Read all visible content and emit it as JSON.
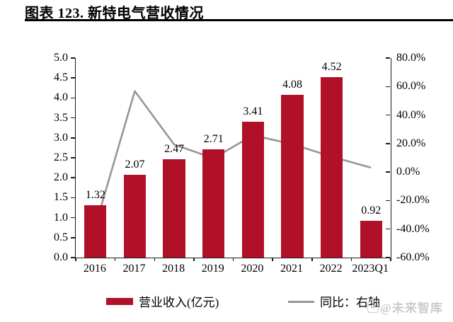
{
  "header": {
    "title": "图表 123. 新特电气营收情况"
  },
  "chart_data": {
    "type": "bar",
    "subtype": "bar-with-line-dual-axis",
    "categories": [
      "2016",
      "2017",
      "2018",
      "2019",
      "2020",
      "2021",
      "2022",
      "2023Q1"
    ],
    "series": [
      {
        "name": "营业收入(亿元)",
        "type": "bar",
        "axis": "left",
        "values": [
          1.32,
          2.07,
          2.47,
          2.71,
          3.41,
          4.08,
          4.52,
          0.92
        ],
        "labels": [
          "1.32",
          "2.07",
          "2.47",
          "2.71",
          "3.41",
          "4.08",
          "4.52",
          "0.92"
        ],
        "color": "#B01129"
      },
      {
        "name": "同比：右轴",
        "type": "line",
        "axis": "right",
        "values": [
          -37.7,
          56.8,
          19.3,
          9.7,
          25.8,
          19.6,
          10.8,
          3.1
        ],
        "color": "#969696"
      }
    ],
    "left_axis": {
      "min": 0.0,
      "max": 5.0,
      "tick_labels": [
        "5.0",
        "4.5",
        "4.0",
        "3.5",
        "3.0",
        "2.5",
        "2.0",
        "1.5",
        "1.0",
        "0.5",
        "0.0"
      ]
    },
    "right_axis": {
      "min": -60.0,
      "max": 80.0,
      "tick_labels": [
        "80.0%",
        "60.0%",
        "40.0%",
        "20.0%",
        "0.0%",
        "-20.0%",
        "-40.0%",
        "-60.0%"
      ]
    },
    "grid": false,
    "legend_position": "bottom",
    "title": "图表 123. 新特电气营收情况",
    "xlabel": "",
    "ylabel": ""
  },
  "legend": {
    "bar_label": "营业收入(亿元)",
    "line_label": "同比：右轴"
  },
  "watermark": {
    "text": "@未来智库",
    "icon": "logo-badge-icon"
  },
  "colors": {
    "bar": "#B01129",
    "line": "#969696",
    "axis": "#1a1a1a",
    "watermark": "#cccccc"
  }
}
